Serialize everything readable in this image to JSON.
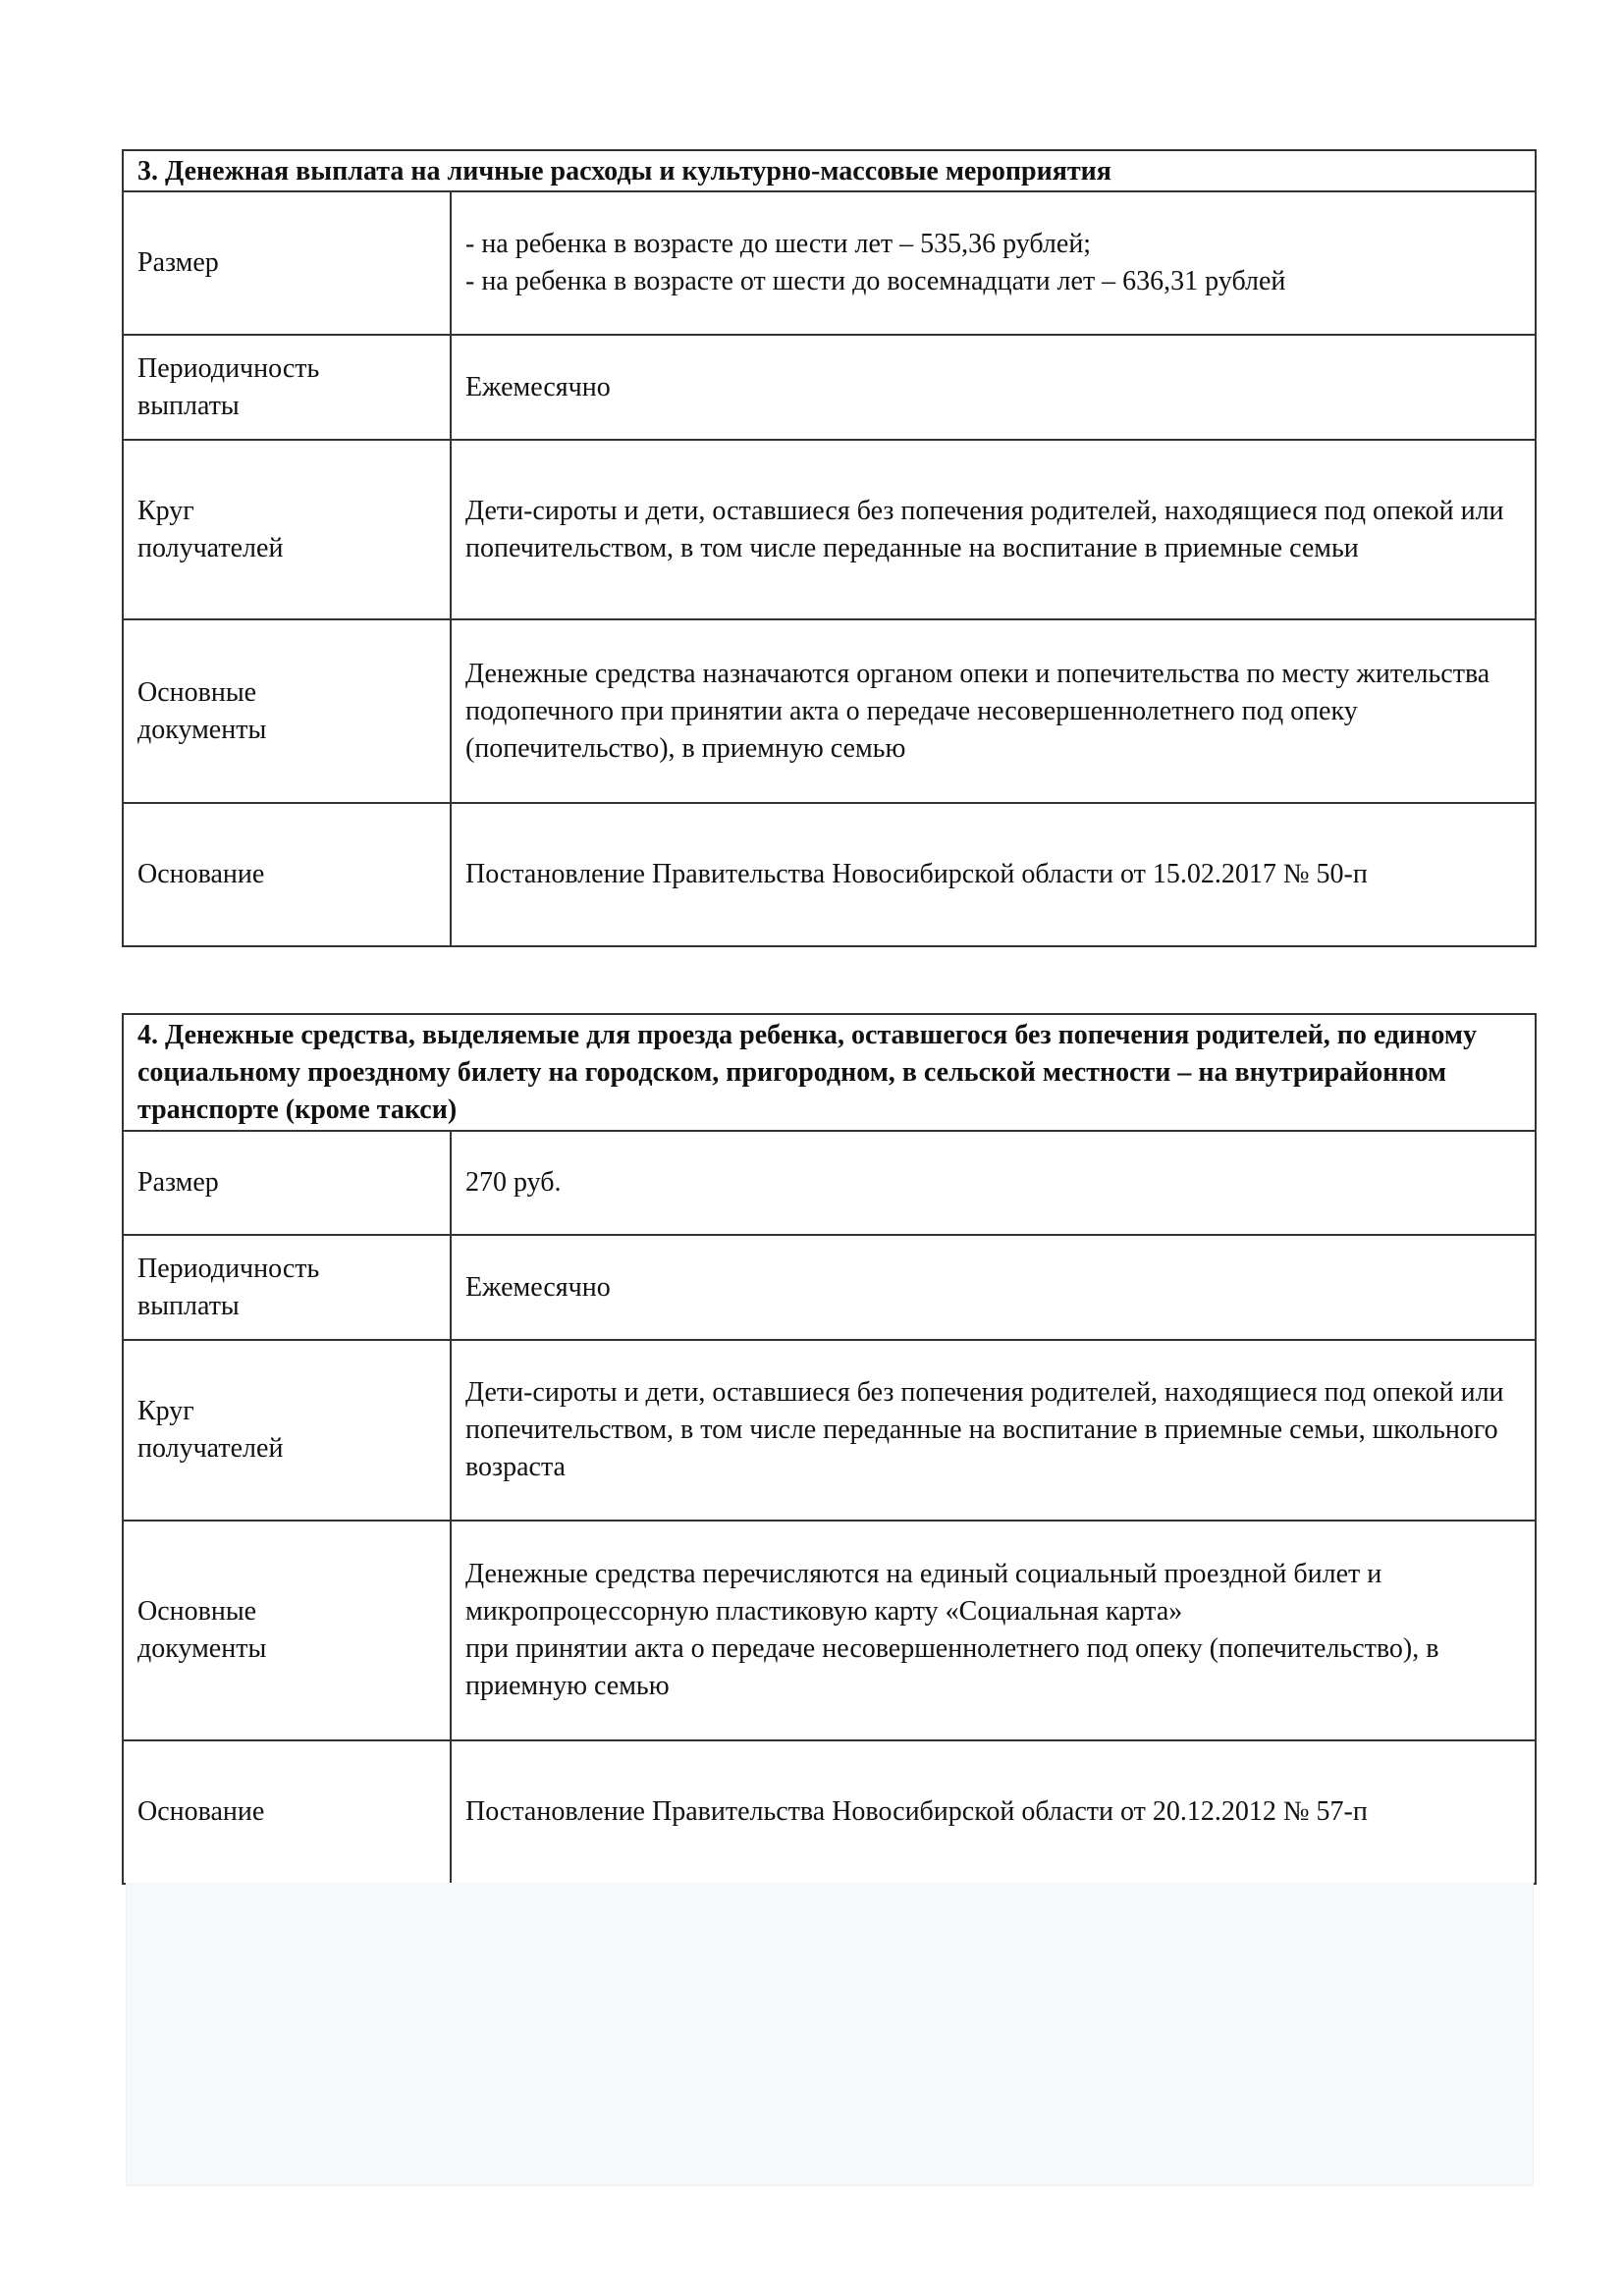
{
  "sections": [
    {
      "title": "3. Денежная выплата на личные расходы и культурно-массовые мероприятия",
      "rows": [
        {
          "label": "Размер",
          "value": "- на ребенка в возрасте до шести лет – 535,36 рублей;\n- на ребенка в возрасте от шести до восемнадцати лет – 636,31 рублей"
        },
        {
          "label": "Периодичность выплаты",
          "value": "Ежемесячно"
        },
        {
          "label": "Круг получателей",
          "value": "Дети-сироты и дети, оставшиеся без попечения родителей, находящиеся под опекой или попечительством, в том числе переданные на воспитание в приемные семьи"
        },
        {
          "label": "Основные документы",
          "value": "Денежные средства назначаются органом опеки и попечительства по месту жительства подопечного при принятии акта о передаче несовершеннолетнего под опеку (попечительство), в приемную семью"
        },
        {
          "label": "Основание",
          "value": "Постановление Правительства Новосибирской области от 15.02.2017 № 50-п"
        }
      ]
    },
    {
      "title": "4. Денежные средства, выделяемые для проезда ребенка, оставшегося без попечения родителей, по единому социальному проездному билету на городском, пригородном, в сельской местности – на внутрирайонном транспорте (кроме такси)",
      "rows": [
        {
          "label": "Размер",
          "value": "270 руб."
        },
        {
          "label": "Периодичность выплаты",
          "value": "Ежемесячно"
        },
        {
          "label": "Круг получателей",
          "value": "Дети-сироты и дети, оставшиеся без попечения родителей, находящиеся под опекой или попечительством, в том числе переданные на воспитание в приемные семьи, школьного возраста"
        },
        {
          "label": "Основные документы",
          "value": "Денежные средства перечисляются на единый социальный проездной билет и микропроцессорную пластиковую карту «Социальная карта»\n при принятии акта о передаче несовершеннолетнего под опеку (попечительство), в приемную семью"
        },
        {
          "label": "Основание",
          "value": "Постановление Правительства Новосибирской области от 20.12.2012 № 57-п"
        }
      ]
    }
  ]
}
